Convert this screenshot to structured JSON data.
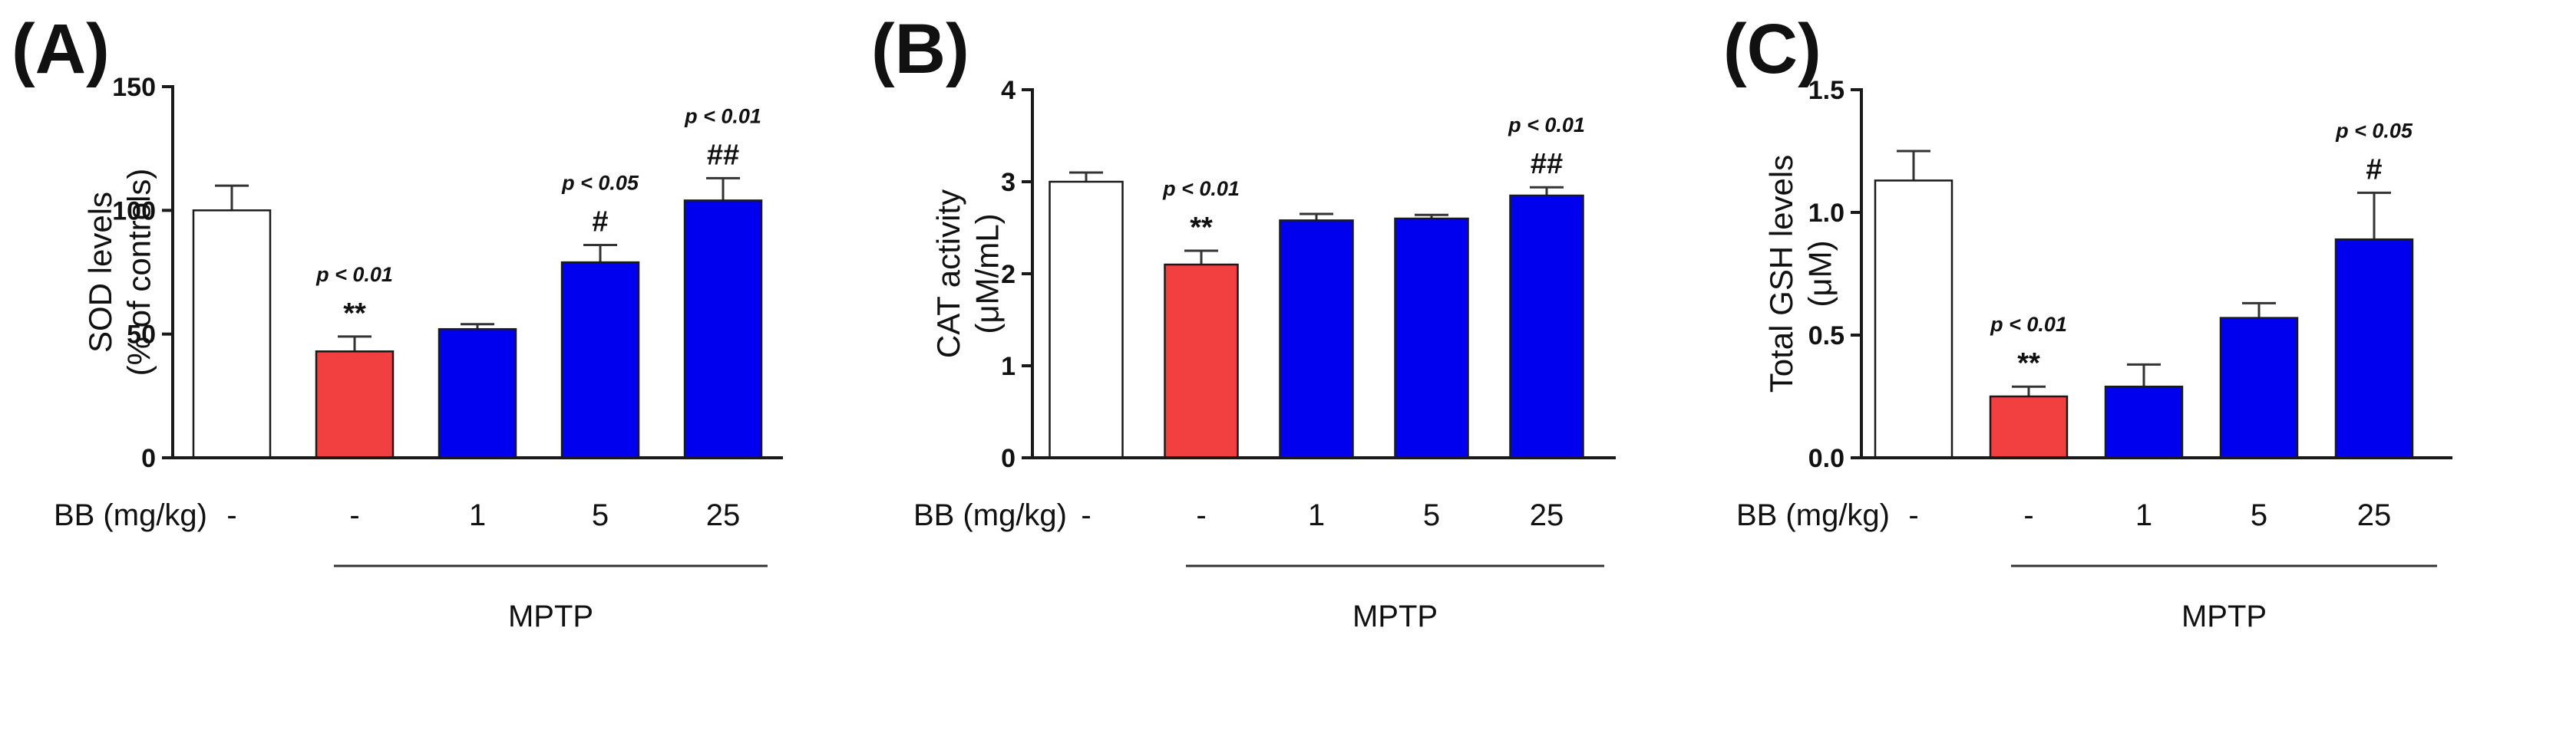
{
  "chart_data": [
    {
      "type": "bar",
      "panel_label": "(A)",
      "ylabel_lines": [
        "SOD levels",
        "(% of controls)"
      ],
      "ylim": [
        0,
        150
      ],
      "yticks": [
        0,
        50,
        100,
        150
      ],
      "ytick_labels": [
        "0",
        "50",
        "100",
        "150"
      ],
      "categories": [
        "-",
        "-",
        "1",
        "5",
        "25"
      ],
      "values": [
        100,
        43,
        52,
        79,
        104
      ],
      "errors": [
        10,
        6,
        2,
        7,
        9
      ],
      "colors": [
        "#ffffff",
        "#f24040",
        "#0000ee",
        "#0000ee",
        "#0000ee"
      ],
      "significance": [
        "",
        "**",
        "",
        "#",
        "##"
      ],
      "p_values": [
        "",
        "p < 0.01",
        "",
        "p < 0.05",
        "p < 0.01"
      ],
      "xgroup_label": "BB (mg/kg)",
      "bracket_label": "MPTP"
    },
    {
      "type": "bar",
      "panel_label": "(B)",
      "ylabel_lines": [
        "CAT activity",
        "(μM/mL)"
      ],
      "ylim": [
        0,
        4
      ],
      "yticks": [
        0,
        1,
        2,
        3,
        4
      ],
      "ytick_labels": [
        "0",
        "1",
        "2",
        "3",
        "4"
      ],
      "categories": [
        "-",
        "-",
        "1",
        "5",
        "25"
      ],
      "values": [
        3.0,
        2.1,
        2.58,
        2.6,
        2.85
      ],
      "errors": [
        0.1,
        0.15,
        0.07,
        0.04,
        0.09
      ],
      "colors": [
        "#ffffff",
        "#f24040",
        "#0000ee",
        "#0000ee",
        "#0000ee"
      ],
      "significance": [
        "",
        "**",
        "",
        "",
        "##"
      ],
      "p_values": [
        "",
        "p < 0.01",
        "",
        "",
        "p < 0.01"
      ],
      "xgroup_label": "BB (mg/kg)",
      "bracket_label": "MPTP"
    },
    {
      "type": "bar",
      "panel_label": "(C)",
      "ylabel_lines": [
        "Total GSH levels",
        "(μM)"
      ],
      "ylim": [
        0,
        1.5
      ],
      "yticks": [
        0,
        0.5,
        1.0,
        1.5
      ],
      "ytick_labels": [
        "0.0",
        "0.5",
        "1.0",
        "1.5"
      ],
      "categories": [
        "-",
        "-",
        "1",
        "5",
        "25"
      ],
      "values": [
        1.13,
        0.25,
        0.29,
        0.57,
        0.89
      ],
      "errors": [
        0.12,
        0.04,
        0.09,
        0.06,
        0.19
      ],
      "colors": [
        "#ffffff",
        "#f24040",
        "#0000ee",
        "#0000ee",
        "#0000ee"
      ],
      "significance": [
        "",
        "**",
        "",
        "",
        "#"
      ],
      "p_values": [
        "",
        "p < 0.01",
        "",
        "",
        "p < 0.05"
      ],
      "xgroup_label": "BB (mg/kg)",
      "bracket_label": "MPTP"
    }
  ]
}
